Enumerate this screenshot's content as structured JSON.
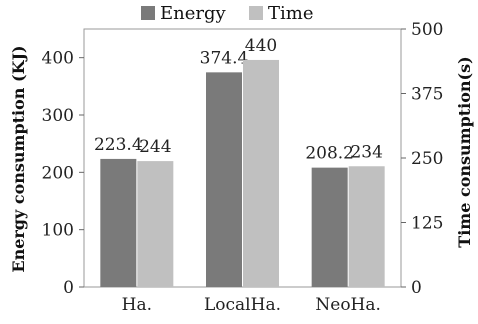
{
  "chart_data": {
    "type": "bar",
    "categories": [
      "Ha.",
      "LocalHa.",
      "NeoHa."
    ],
    "series": [
      {
        "name": "Energy",
        "axis": "left",
        "values": [
          223.4,
          374.4,
          208.2
        ],
        "labels": [
          "223.4",
          "374.4",
          "208.2"
        ],
        "color": "#7a7a7a"
      },
      {
        "name": "Time",
        "axis": "right",
        "values": [
          244,
          440,
          234
        ],
        "labels": [
          "244",
          "440",
          "234"
        ],
        "color": "#c0c0c0"
      }
    ],
    "ylabel": "Energy consumption (KJ)",
    "ylabel_right": "Time consumption(s)",
    "ylim": [
      0,
      450
    ],
    "ylim_right": [
      0,
      500
    ],
    "yticks": [
      "0",
      "100",
      "200",
      "300",
      "400"
    ],
    "yticks_right": [
      "0",
      "125",
      "250",
      "375",
      "500"
    ],
    "legend_position": "top",
    "grid": false
  }
}
